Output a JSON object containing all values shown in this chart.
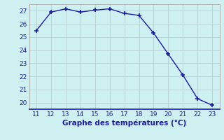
{
  "x": [
    11,
    12,
    13,
    14,
    15,
    16,
    17,
    18,
    19,
    20,
    21,
    22,
    23
  ],
  "y": [
    25.5,
    26.9,
    27.15,
    26.9,
    27.05,
    27.15,
    26.8,
    26.65,
    25.3,
    23.7,
    22.1,
    20.3,
    19.8
  ],
  "line_color": "#1a1aaa",
  "marker": "+",
  "marker_size": 4,
  "marker_lw": 1.2,
  "line_width": 1.0,
  "background_color": "#cff0f0",
  "grid_color": "#b0c8c8",
  "xlabel": "Graphe des températures (°C)",
  "xlabel_color": "#1a1aaa",
  "tick_color": "#1a1aaa",
  "xlim": [
    10.5,
    23.5
  ],
  "ylim": [
    19.5,
    27.5
  ],
  "xticks": [
    11,
    12,
    13,
    14,
    15,
    16,
    17,
    18,
    19,
    20,
    21,
    22,
    23
  ],
  "yticks": [
    20,
    21,
    22,
    23,
    24,
    25,
    26,
    27
  ],
  "spine_color": "#aaaaaa",
  "bottom_spine_color": "#1a1aaa",
  "fig_bg": "#cff0f0",
  "tick_fontsize": 6.5,
  "xlabel_fontsize": 7.5
}
